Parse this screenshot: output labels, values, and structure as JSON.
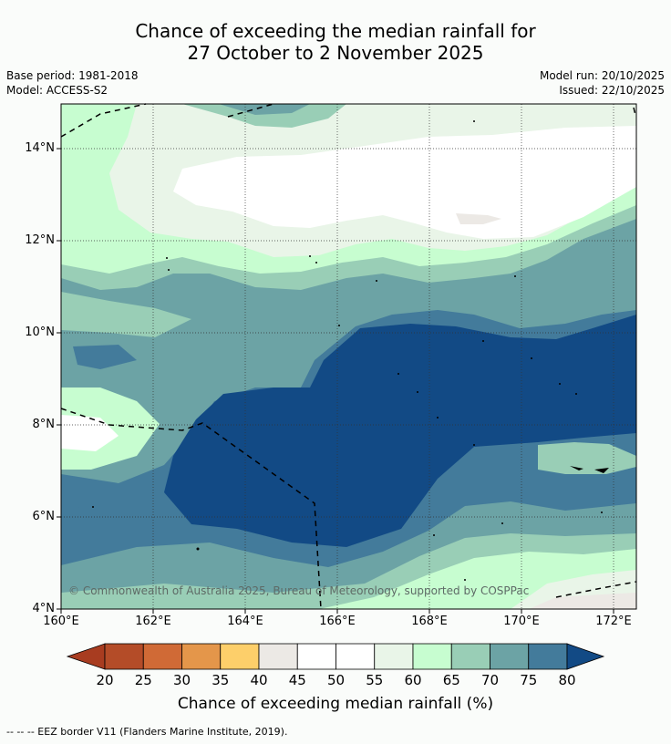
{
  "title_line1": "Chance of exceeding the median rainfall for",
  "title_line2": "27 October to 2 November 2025",
  "base_period": "Base period: 1981-2018",
  "model": "Model: ACCESS-S2",
  "model_run": "Model run: 20/10/2025",
  "issued": "Issued: 22/10/2025",
  "copyright": "© Commonwealth of Australia 2025, Bureau of Meteorology, supported by COSPPac",
  "lat_labels": [
    "14°N",
    "12°N",
    "10°N",
    "8°N",
    "6°N",
    "4°N"
  ],
  "lon_labels": [
    "160°E",
    "162°E",
    "164°E",
    "166°E",
    "168°E",
    "170°E",
    "172°E"
  ],
  "colorbar": {
    "title": "Chance of exceeding median rainfall (%)",
    "ticks": [
      "20",
      "25",
      "30",
      "35",
      "40",
      "45",
      "50",
      "55",
      "60",
      "65",
      "70",
      "75",
      "80"
    ],
    "colors": [
      "#a83c20",
      "#b44c28",
      "#d06a36",
      "#e4964a",
      "#fdcf6a",
      "#ece9e5",
      "#ffffff",
      "#ffffff",
      "#e9f5e8",
      "#c7fdd0",
      "#99ceb6",
      "#6ca3a5",
      "#437b9b",
      "#124a85"
    ]
  },
  "footer": "--  --  -- EEZ border V11 (Flanders Marine Institute, 2019)."
}
